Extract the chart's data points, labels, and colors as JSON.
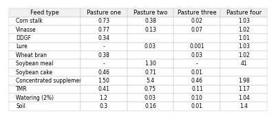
{
  "columns": [
    "Feed type",
    "Pasture one",
    "Pasture two",
    "Pasture three",
    "Pasture four"
  ],
  "rows": [
    [
      "Corn stalk",
      "0.73",
      "0.38",
      "0.02",
      "1.03"
    ],
    [
      "Vinasse",
      "0.77",
      "0.13",
      "0.07",
      "1.02"
    ],
    [
      "DDGF",
      "0.34",
      "",
      "",
      "1.01"
    ],
    [
      "Lure",
      "-",
      "0.03",
      "0.001",
      "1.03"
    ],
    [
      "Wheat bran",
      "0.38",
      "",
      "0.03",
      "1.02"
    ],
    [
      "Soybean meal",
      "-",
      "1.30",
      "-",
      "41"
    ],
    [
      "Soybean cake",
      "0.46",
      "0.71",
      "0.01",
      ""
    ],
    [
      "Concentrated supplement",
      "1.50",
      "5.4",
      "0.46",
      "1.98"
    ],
    [
      "TMR",
      "0.41",
      "0.75",
      "0.11",
      "1.17"
    ],
    [
      "Watering (2%)",
      "1.2",
      "0.03",
      "0.10",
      "1.04"
    ],
    [
      "Soil",
      "0.3",
      "0.16",
      "0.01",
      "1.4"
    ]
  ],
  "header_color": "#f0f0f0",
  "bg_color": "#ffffff",
  "text_color": "#000000",
  "header_fontsize": 6.0,
  "cell_fontsize": 5.5,
  "line_color": "#bbbbbb"
}
